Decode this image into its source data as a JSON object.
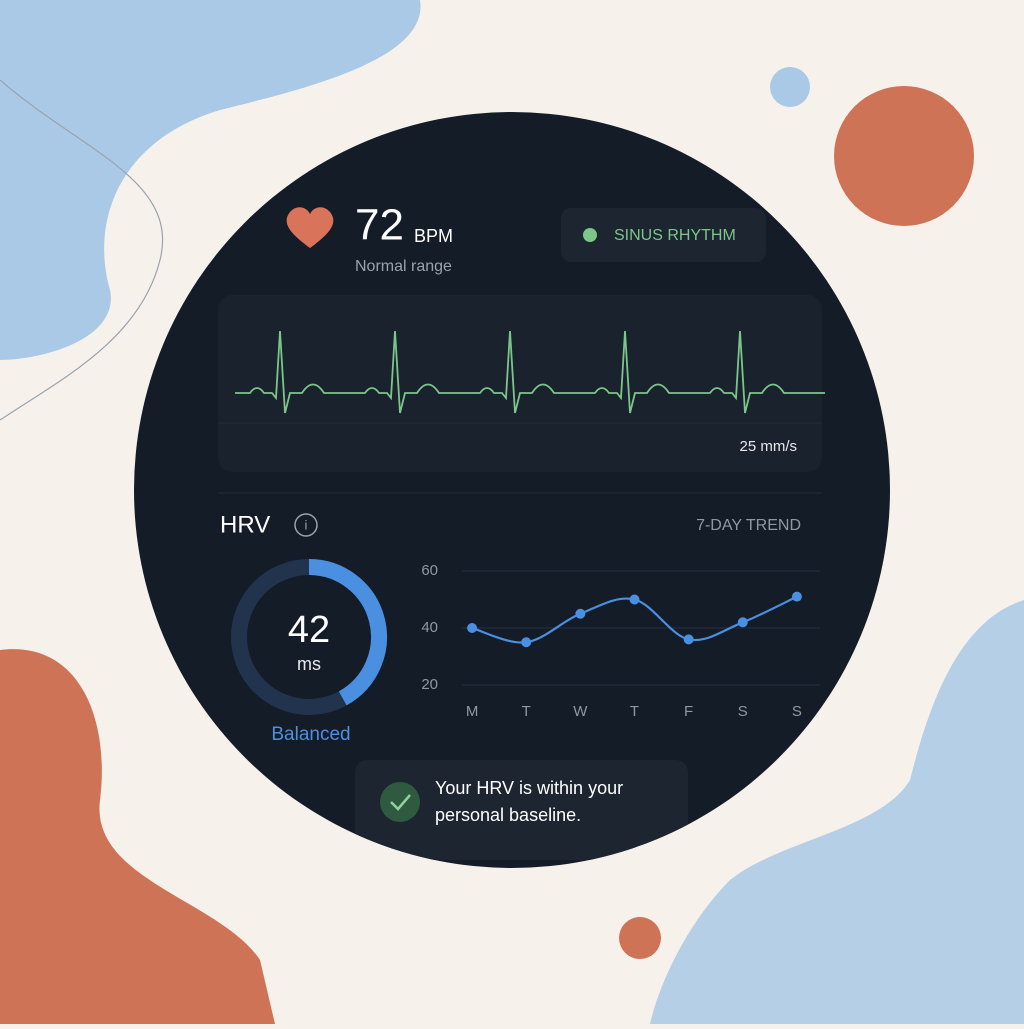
{
  "header": {
    "bpm": 72,
    "bpm_unit": "BPM",
    "status": "Normal range",
    "rhythm": "SINUS RHYTHM"
  },
  "ecg": {
    "speed": "25 mm/s"
  },
  "hrv": {
    "title": "HRV",
    "trend_label": "7-DAY TREND",
    "value": 42,
    "unit": "ms",
    "state": "Balanced"
  },
  "chart_data": {
    "type": "line",
    "categories": [
      "M",
      "T",
      "W",
      "T",
      "F",
      "S",
      "S"
    ],
    "values": [
      40,
      35,
      45,
      50,
      36,
      42,
      51
    ],
    "color": "#4a8fe0",
    "ylim": [
      20,
      60
    ],
    "yticks": [
      20,
      40,
      60
    ],
    "grid": true
  },
  "message": {
    "lines": [
      "Your HRV is within your",
      "personal baseline."
    ]
  }
}
